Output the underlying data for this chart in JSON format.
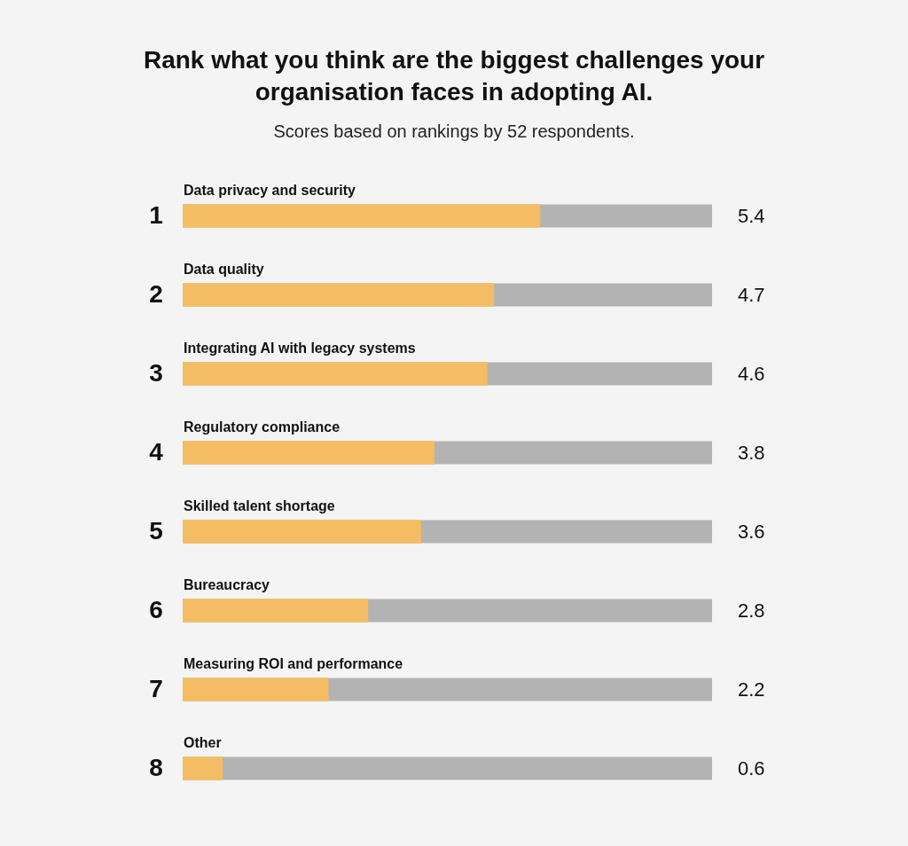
{
  "chart_data": {
    "type": "bar",
    "orientation": "horizontal",
    "title": "Rank what you think are the biggest challenges your organisation faces in adopting AI.",
    "subtitle": "Scores based on rankings by 52 respondents.",
    "categories": [
      "Data privacy and security",
      "Data quality",
      "Integrating AI with legacy systems",
      "Regulatory compliance",
      "Skilled talent shortage",
      "Bureaucracy",
      "Measuring ROI and performance",
      "Other"
    ],
    "values": [
      5.4,
      4.7,
      4.6,
      3.8,
      3.6,
      2.8,
      2.2,
      0.6
    ],
    "color": "#f4bd63",
    "xlim": [
      0,
      8
    ],
    "tick_labels": false,
    "data_labels": true,
    "annotations": [
      "1",
      "2",
      "3",
      "4",
      "5",
      "6",
      "7",
      "8"
    ]
  }
}
